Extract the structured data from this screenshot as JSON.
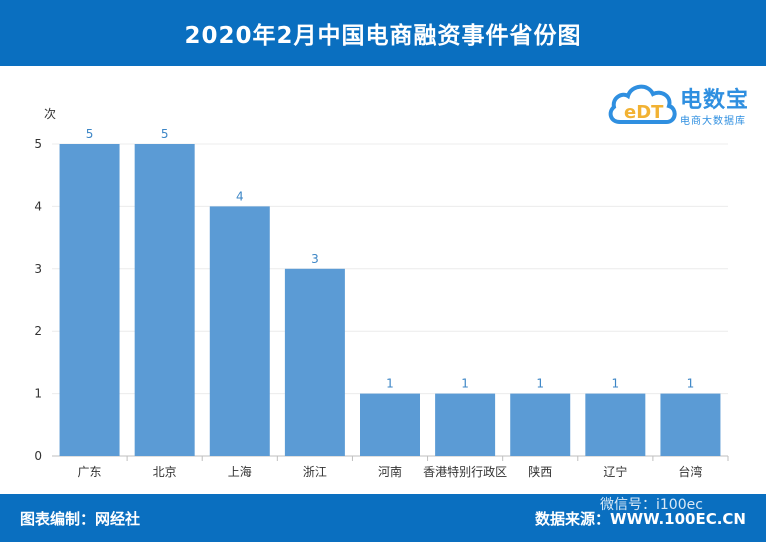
{
  "header": {
    "title": "2020年2月中国电商融资事件省份图"
  },
  "logo": {
    "main": "电数宝",
    "sub": "电商大数据库",
    "mark": "eDT"
  },
  "footer": {
    "left": "图表编制：网经社",
    "right": "数据来源：WWW.100EC.CN",
    "watermark": "微信号：i100ec"
  },
  "colors": {
    "header_bg": "#0a6fc0",
    "bar": "#5b9bd5",
    "value_label": "#3d86c6"
  },
  "chart_data": {
    "type": "bar",
    "ylabel": "次",
    "ylim": [
      0,
      5
    ],
    "yticks": [
      0,
      1,
      2,
      3,
      4,
      5
    ],
    "categories": [
      "广东",
      "北京",
      "上海",
      "浙江",
      "河南",
      "香港特别行政区",
      "陕西",
      "辽宁",
      "台湾"
    ],
    "values": [
      5,
      5,
      4,
      3,
      1,
      1,
      1,
      1,
      1
    ]
  }
}
